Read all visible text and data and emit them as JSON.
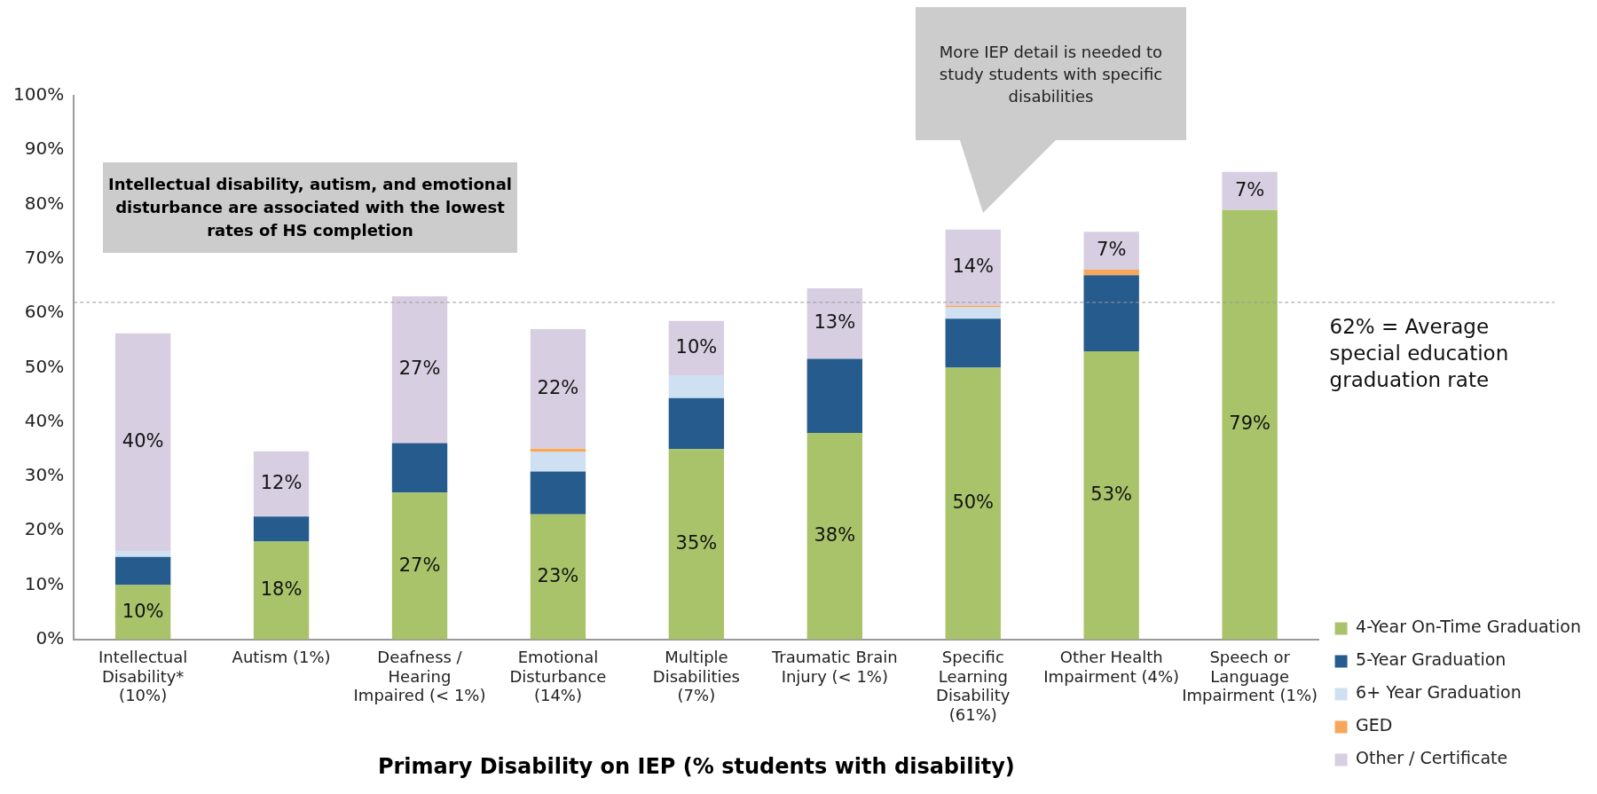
{
  "chart_data": {
    "type": "bar",
    "stacked": true,
    "xlabel": "Primary Disability on IEP (% students with disability)",
    "categories": [
      "Intellectual Disability* (10%)",
      "Autism (1%)",
      "Deafness / Hearing Impaired (< 1%)",
      "Emotional Disturbance (14%)",
      "Multiple Disabilities (7%)",
      "Traumatic Brain Injury (< 1%)",
      "Specific Learning Disability (61%)",
      "Other Health Impairment (4%)",
      "Speech or Language Impairment (1%)"
    ],
    "series": [
      {
        "name": "4-Year On-Time Graduation",
        "color": "#a9c36a",
        "values": [
          10,
          18,
          27,
          23,
          35,
          38,
          50,
          53,
          79
        ],
        "value_labels": [
          "10%",
          "18%",
          "27%",
          "23%",
          "35%",
          "38%",
          "50%",
          "53%",
          "79%"
        ]
      },
      {
        "name": "5-Year Graduation",
        "color": "#265b8e",
        "values": [
          5.2,
          4.6,
          9.1,
          7.9,
          9.4,
          13.6,
          9,
          14,
          null
        ]
      },
      {
        "name": "6+ Year Graduation",
        "color": "#cfe0f2",
        "values": [
          1.1,
          null,
          null,
          3.6,
          4.2,
          null,
          2.1,
          null,
          null
        ]
      },
      {
        "name": "GED",
        "color": "#f7a75a",
        "values": [
          null,
          null,
          null,
          0.6,
          null,
          null,
          0.3,
          1,
          null
        ]
      },
      {
        "name": "Other / Certificate",
        "color": "#d7cfe1",
        "values": [
          40,
          12,
          27,
          22,
          10,
          13,
          14,
          7,
          7
        ],
        "value_labels": [
          "40%",
          "12%",
          "27%",
          "22%",
          "10%",
          "13%",
          "14%",
          "7%",
          "7%"
        ]
      }
    ],
    "ylim": [
      0,
      100
    ],
    "yticks": [
      {
        "value": 0,
        "label": "0%"
      },
      {
        "value": 10,
        "label": "10%"
      },
      {
        "value": 20,
        "label": "20%"
      },
      {
        "value": 30,
        "label": "30%"
      },
      {
        "value": 40,
        "label": "40%"
      },
      {
        "value": 50,
        "label": "50%"
      },
      {
        "value": 60,
        "label": "60%"
      },
      {
        "value": 70,
        "label": "70%"
      },
      {
        "value": 80,
        "label": "80%"
      },
      {
        "value": 90,
        "label": "90%"
      },
      {
        "value": 100,
        "label": "100%"
      }
    ],
    "ref_lines": [
      {
        "axis": "y",
        "value": 62,
        "label": "62% = Average special education graduation rate",
        "color": "#999999",
        "line_style": "dashed"
      }
    ],
    "annotations": [
      "Intellectual disability, autism, and emotional disturbance are associated with the lowest rates of HS completion",
      "More IEP detail is needed to study students with specific disabilities"
    ],
    "grid": false,
    "legend": "right"
  }
}
